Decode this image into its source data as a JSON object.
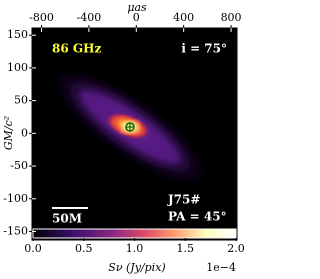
{
  "chart_data": {
    "type": "heatmap",
    "x_label": "μas",
    "y_label": "GM/c²",
    "xlim": [
      -880,
      850
    ],
    "xticks": [
      -800,
      -400,
      0,
      400,
      800
    ],
    "ylim": [
      -163,
      161
    ],
    "yticks": [
      150,
      100,
      50,
      0,
      -50,
      -100,
      -150
    ],
    "colorbar_label": "Sν (Jy/pix)",
    "colorbar_offset": "1e−4",
    "clim": [
      0,
      2.0
    ],
    "colorbar_ticks": [
      {
        "value": 0,
        "label": "0.0"
      },
      {
        "value": 0.5,
        "label": "0.5"
      },
      {
        "value": 1.0,
        "label": "1.0"
      },
      {
        "value": 1.5,
        "label": "1.5"
      },
      {
        "value": 2.0,
        "label": "2.0"
      }
    ],
    "annotations": {
      "frequency": "86 GHz",
      "inclination": "i = 75°",
      "model": "J75#",
      "position_angle": "PA = 45°",
      "scale_bar": "50M"
    }
  }
}
